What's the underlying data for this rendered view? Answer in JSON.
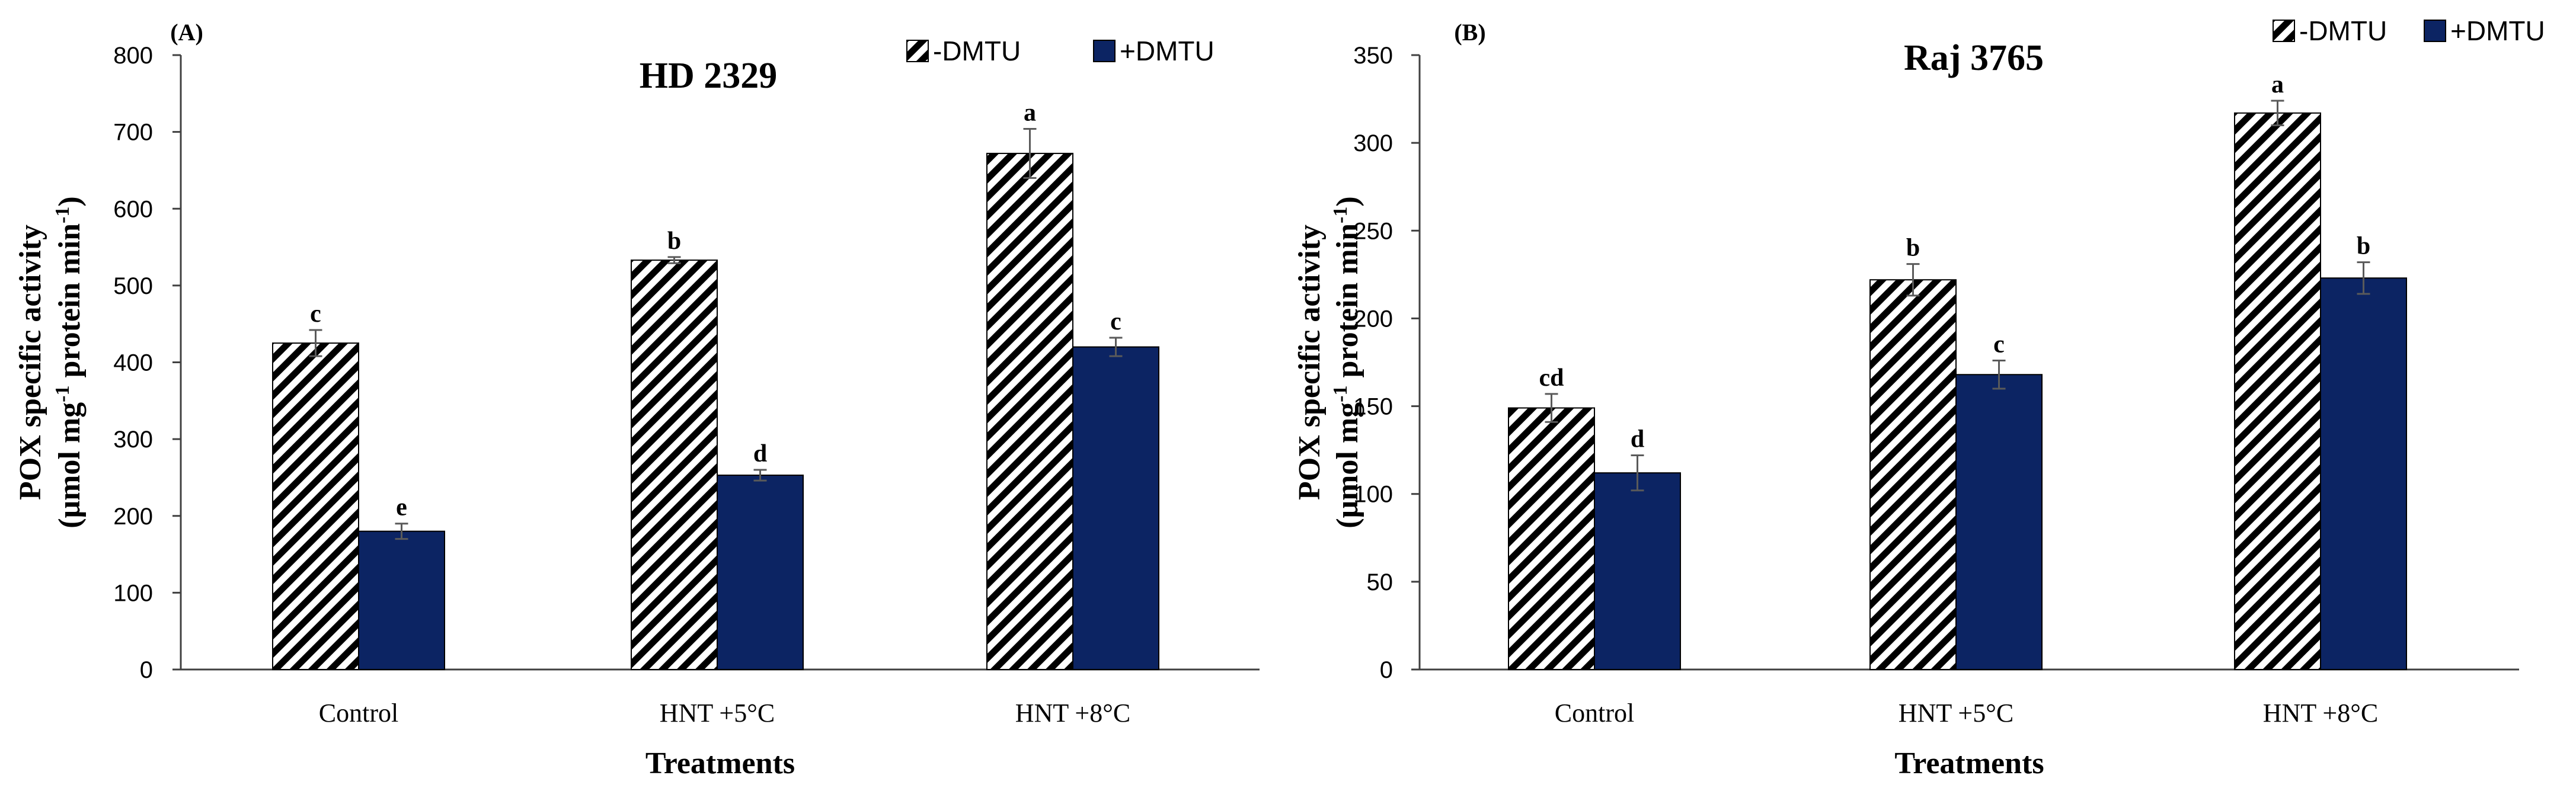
{
  "chart_data": [
    {
      "panel": "(A)",
      "type": "bar",
      "title": "HD 2329",
      "xlabel": "Treatments",
      "ylabel_line1": "POX specific activity",
      "ylabel_line2_parts": [
        "(μmol  mg",
        "-1",
        " protein min",
        "-1",
        ")"
      ],
      "categories": [
        "Control",
        "HNT +5°C",
        "HNT +8°C"
      ],
      "ylim": [
        0,
        800
      ],
      "yticks": [
        0,
        100,
        200,
        300,
        400,
        500,
        600,
        700,
        800
      ],
      "series": [
        {
          "name": "-DMTU",
          "values": [
            425,
            533,
            672
          ],
          "errors": [
            17,
            4,
            32
          ],
          "letters": [
            "c",
            "b",
            "a"
          ]
        },
        {
          "name": "+DMTU",
          "values": [
            180,
            253,
            420
          ],
          "errors": [
            10,
            7,
            12
          ],
          "letters": [
            "e",
            "d",
            "c"
          ]
        }
      ]
    },
    {
      "panel": "(B)",
      "type": "bar",
      "title": "Raj 3765",
      "xlabel": "Treatments",
      "ylabel_line1": "POX specific activity",
      "ylabel_line2_parts": [
        "(μmol  mg",
        "-1",
        " protein min",
        "-1",
        ")"
      ],
      "categories": [
        "Control",
        "HNT +5°C",
        "HNT +8°C"
      ],
      "ylim": [
        0,
        350
      ],
      "yticks": [
        0,
        50,
        100,
        150,
        200,
        250,
        300,
        350
      ],
      "series": [
        {
          "name": "-DMTU",
          "values": [
            149,
            222,
            317
          ],
          "errors": [
            8,
            9,
            7
          ],
          "letters": [
            "cd",
            "b",
            "a"
          ]
        },
        {
          "name": "+DMTU",
          "values": [
            112,
            168,
            223
          ],
          "errors": [
            10,
            8,
            9
          ],
          "letters": [
            "d",
            "c",
            "b"
          ]
        }
      ]
    }
  ],
  "colors": {
    "hatch_fg": "#000000",
    "hatch_bg": "#ffffff",
    "solid_fill": "#0c2463",
    "axis": "#404040",
    "errorbar": "#5a5a5a"
  }
}
